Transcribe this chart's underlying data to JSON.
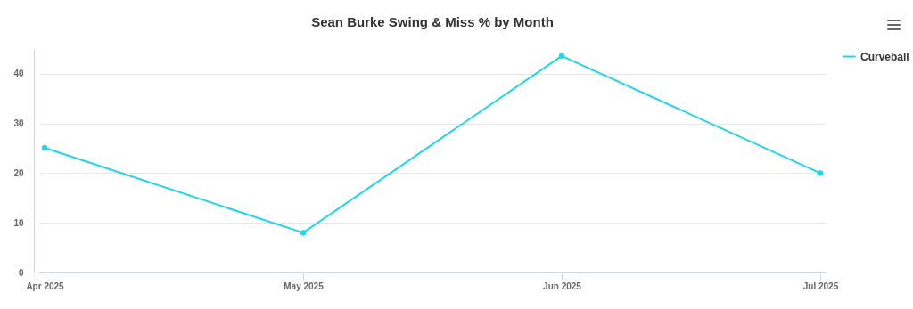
{
  "chart_data": {
    "type": "line",
    "title": "Sean Burke Swing & Miss % by Month",
    "categories": [
      "Apr 2025",
      "May 2025",
      "Jun 2025",
      "Jul 2025"
    ],
    "series": [
      {
        "name": "Curveball",
        "color": "#1ed5ec",
        "values": [
          25.1,
          8.0,
          43.6,
          20.0
        ]
      }
    ],
    "ylim": [
      0,
      45
    ],
    "yticks": [
      0,
      10,
      20,
      30,
      40
    ],
    "grid": "y",
    "legend": "right",
    "marker": "circle",
    "line_style": "solid"
  }
}
